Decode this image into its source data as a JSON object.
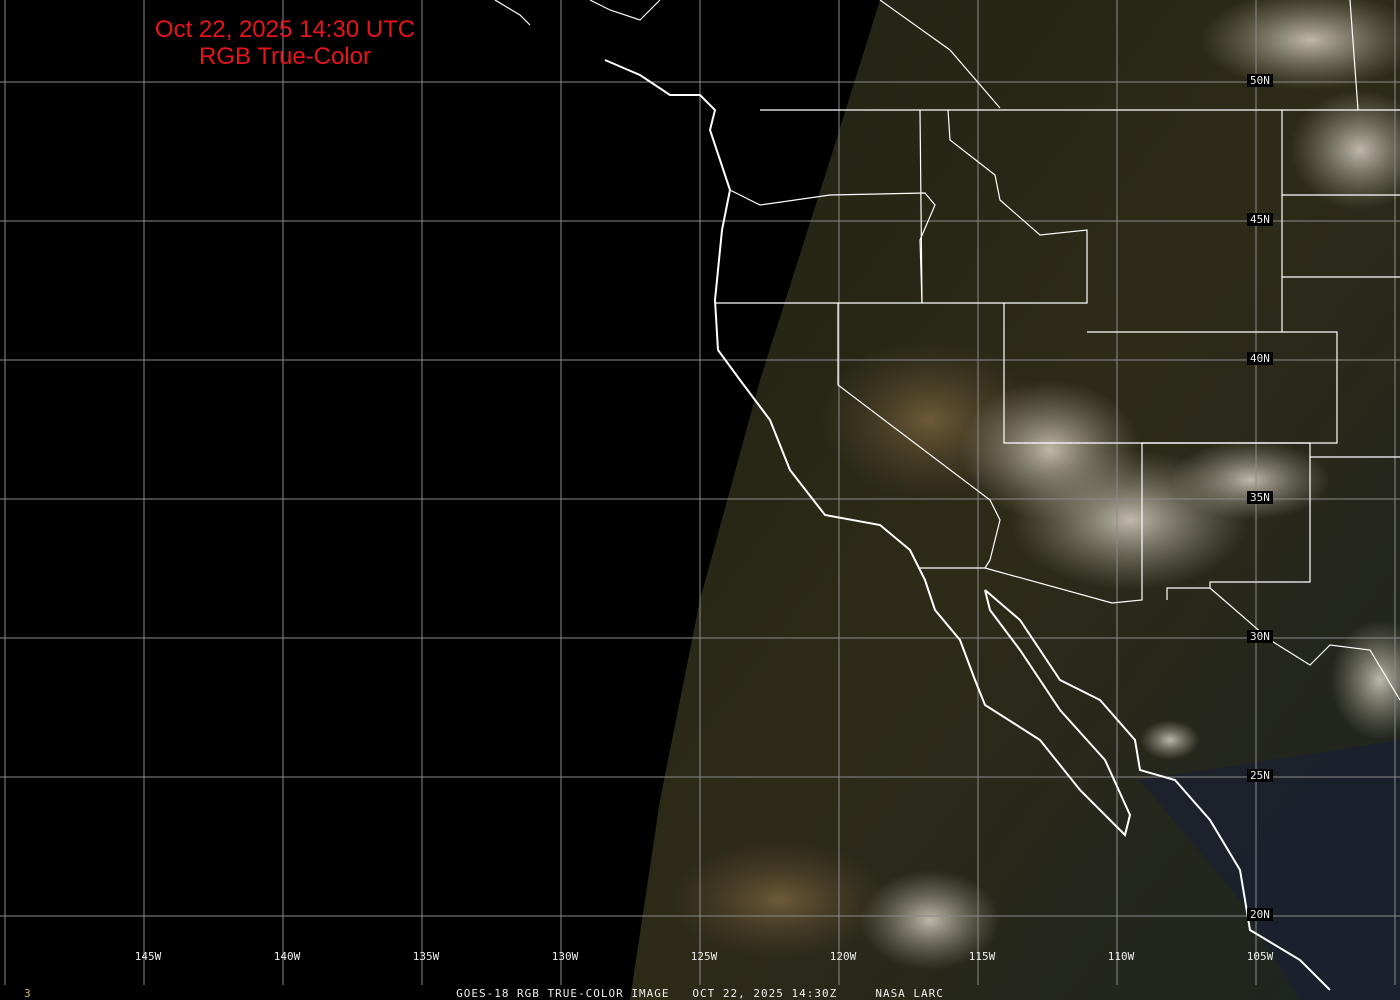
{
  "title": {
    "line1": "Oct 22, 2025 14:30 UTC",
    "line2": "RGB True-Color",
    "color": "#e8141c"
  },
  "latitude_labels": [
    "50N",
    "45N",
    "40N",
    "35N",
    "30N",
    "25N",
    "20N"
  ],
  "longitude_labels": [
    "145W",
    "140W",
    "135W",
    "130W",
    "125W",
    "120W",
    "115W",
    "110W",
    "105W"
  ],
  "caption": "GOES-18 RGB TRUE-COLOR IMAGE   OCT 22, 2025 14:30Z     NASA LARC",
  "frame_number": "3",
  "colors": {
    "grid": "#8a8a8a",
    "borders": "#ffffff",
    "ocean": "#000000",
    "land": "#2c2a18",
    "clouds": "#c8c2b4"
  }
}
